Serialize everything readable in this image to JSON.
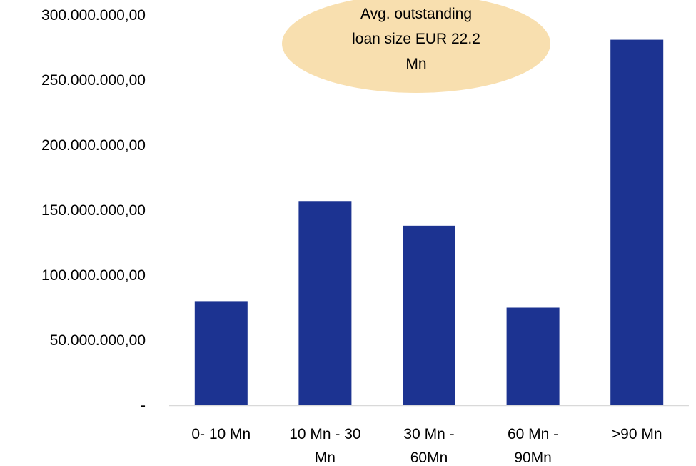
{
  "chart_data": {
    "type": "bar",
    "categories": [
      "0- 10 Mn",
      "10 Mn - 30 Mn",
      "30 Mn - 60Mn",
      "60 Mn - 90Mn",
      ">90 Mn"
    ],
    "category_lines": [
      [
        "0- 10 Mn"
      ],
      [
        "10 Mn - 30",
        "Mn"
      ],
      [
        "30 Mn -",
        "60Mn"
      ],
      [
        "60 Mn -",
        "90Mn"
      ],
      [
        ">90 Mn"
      ]
    ],
    "values": [
      80000000,
      157000000,
      138000000,
      75000000,
      281000000
    ],
    "ylim": [
      0,
      300000000
    ],
    "y_ticks": [
      0,
      50000000,
      100000000,
      150000000,
      200000000,
      250000000,
      300000000
    ],
    "y_tick_labels": [
      "-",
      "50.000.000,00",
      "100.000.000,00",
      "150.000.000,00",
      "200.000.000,00",
      "250.000.000,00",
      "300.000.000,00"
    ],
    "annotation_lines": [
      "Avg. outstanding",
      "loan size EUR 22.2",
      "Mn"
    ],
    "bar_color": "#1c3391",
    "annotation_color": "#f8dfaf",
    "grid": false,
    "legend": "none"
  }
}
